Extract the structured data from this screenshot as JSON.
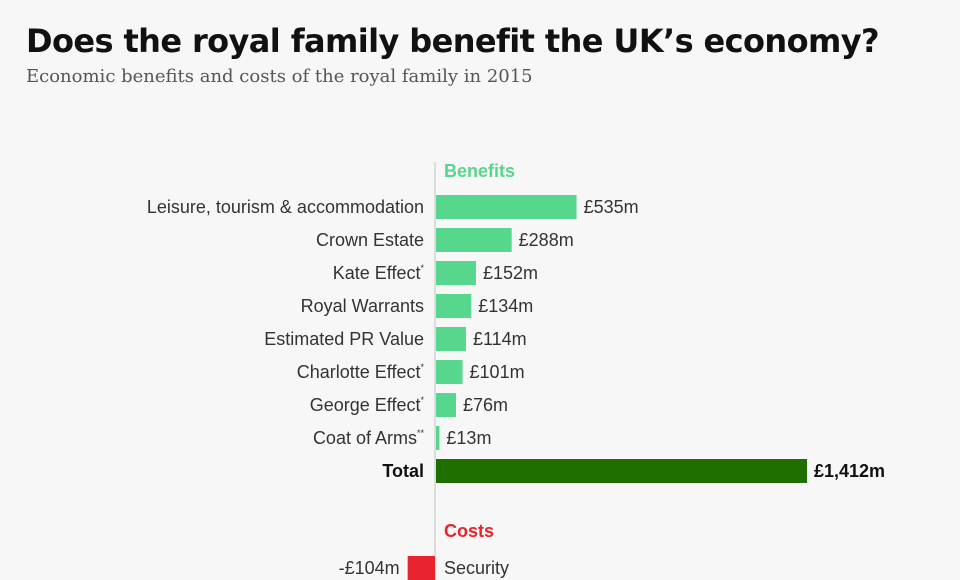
{
  "header": {
    "title": "Does the royal family benefit the UK’s economy?",
    "subtitle": "Economic benefits and costs of the royal family in 2015"
  },
  "colors": {
    "benefit": "#57d68d",
    "total": "#1f6e00",
    "cost": "#e8242e",
    "benefits_heading": "#57d68d",
    "costs_heading": "#e8242e",
    "axis": "#cccccc"
  },
  "chart_data": {
    "type": "bar",
    "orientation": "horizontal",
    "unit": "£m",
    "benefits_heading": "Benefits",
    "costs_heading": "Costs",
    "benefits": [
      {
        "label": "Leisure, tourism & accommodation",
        "marker": "",
        "value": 535,
        "value_label": "£535m"
      },
      {
        "label": "Crown Estate",
        "marker": "",
        "value": 288,
        "value_label": "£288m"
      },
      {
        "label": "Kate Effect",
        "marker": "*",
        "value": 152,
        "value_label": "£152m"
      },
      {
        "label": "Royal Warrants",
        "marker": "",
        "value": 134,
        "value_label": "£134m"
      },
      {
        "label": "Estimated PR Value",
        "marker": "",
        "value": 114,
        "value_label": "£114m"
      },
      {
        "label": "Charlotte Effect",
        "marker": "*",
        "value": 101,
        "value_label": "£101m"
      },
      {
        "label": "George Effect",
        "marker": "*",
        "value": 76,
        "value_label": "£76m"
      },
      {
        "label": "Coat of Arms",
        "marker": "**",
        "value": 13,
        "value_label": "£13m"
      }
    ],
    "total": {
      "label": "Total",
      "value": 1412,
      "value_label": "£1,412m"
    },
    "costs": [
      {
        "label": "Security",
        "value": -104,
        "value_label": "-£104m"
      }
    ]
  }
}
